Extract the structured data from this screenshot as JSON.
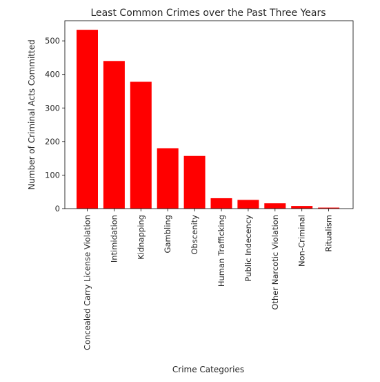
{
  "chart_data": {
    "type": "bar",
    "title": "Least Common Crimes over the Past Three Years",
    "xlabel": "Crime Categories",
    "ylabel": "Number of Criminal Acts Committed",
    "categories": [
      "Concealed Carry License Violation",
      "Intimidation",
      "Kidnapping",
      "Gambling",
      "Obscenity",
      "Human Trafficking",
      "Public Indecency",
      "Other Narcotic Violation",
      "Non-Criminal",
      "Ritualism"
    ],
    "values": [
      533,
      440,
      378,
      180,
      157,
      31,
      26,
      16,
      8,
      3
    ],
    "ylim": [
      0,
      560
    ],
    "yticks": [
      0,
      100,
      200,
      300,
      400,
      500
    ],
    "ytick_labels": [
      "0",
      "100",
      "200",
      "300",
      "400",
      "500"
    ],
    "bar_color": "#ff0000",
    "grid": false,
    "legend": "none"
  }
}
